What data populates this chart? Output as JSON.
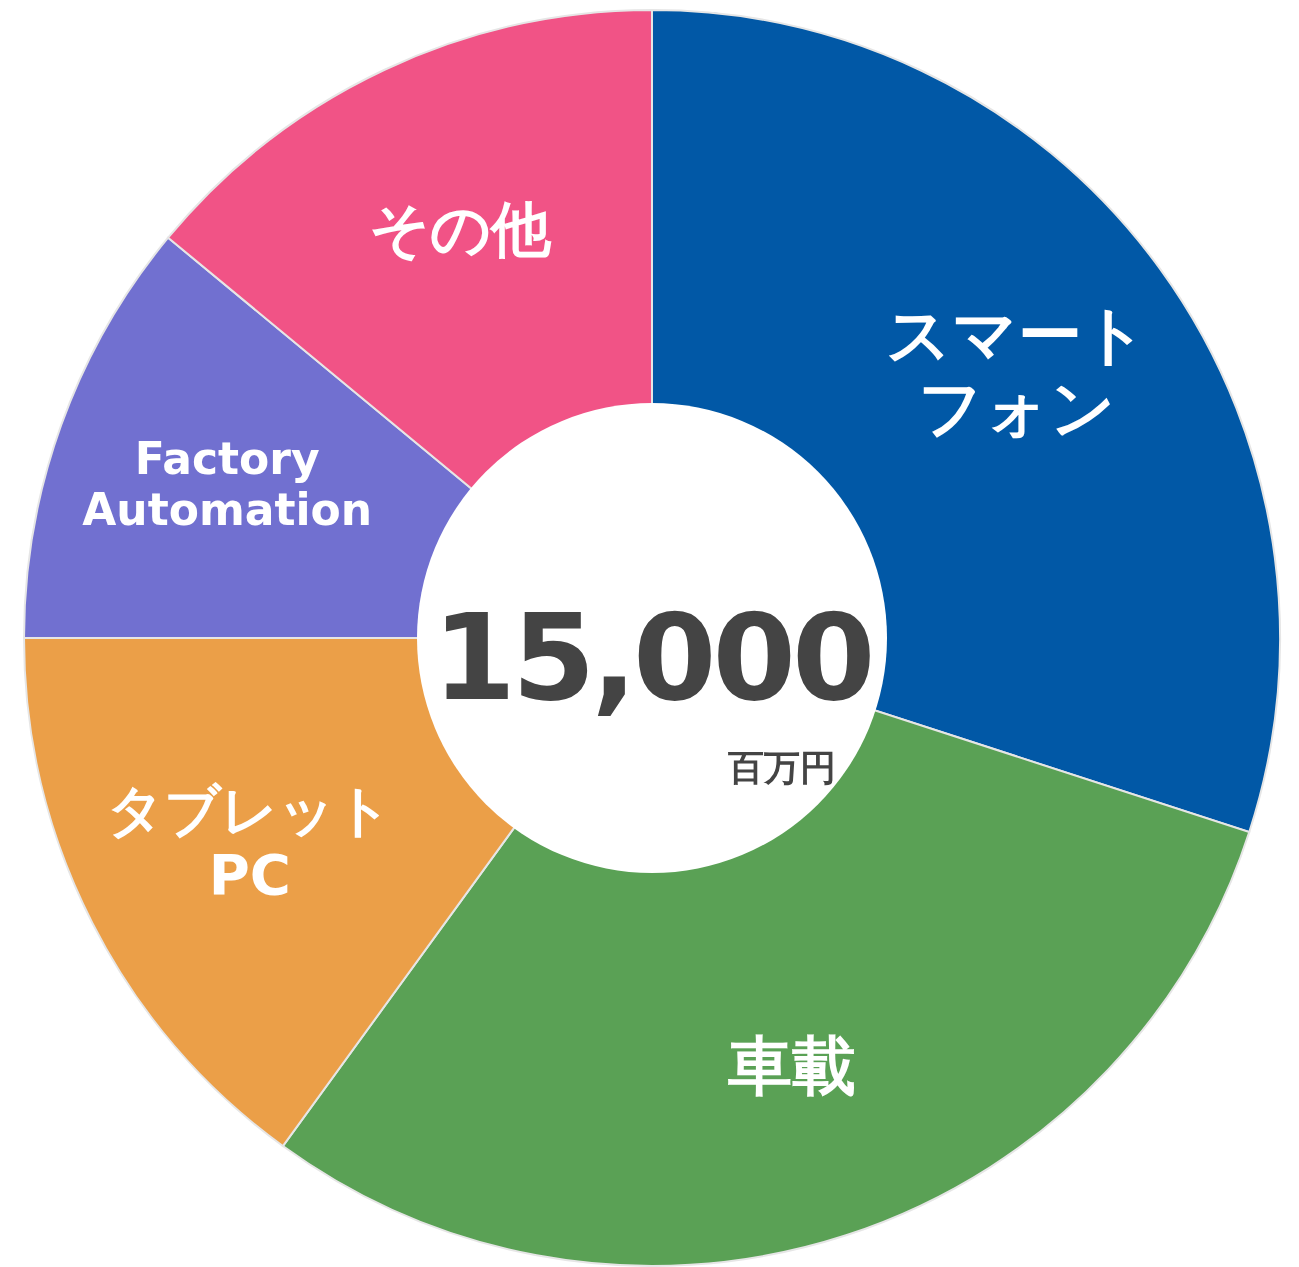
{
  "chart_data": {
    "type": "donut",
    "categories": [
      "スマートフォン",
      "車載",
      "タブレットPC",
      "Factory Automation",
      "その他"
    ],
    "values": [
      30,
      30,
      15,
      11,
      14
    ],
    "colors": [
      "#0158a6",
      "#5aa155",
      "#eb9f48",
      "#7170d0",
      "#f15386"
    ],
    "annotations": [
      "15,000",
      "百万円"
    ]
  }
}
